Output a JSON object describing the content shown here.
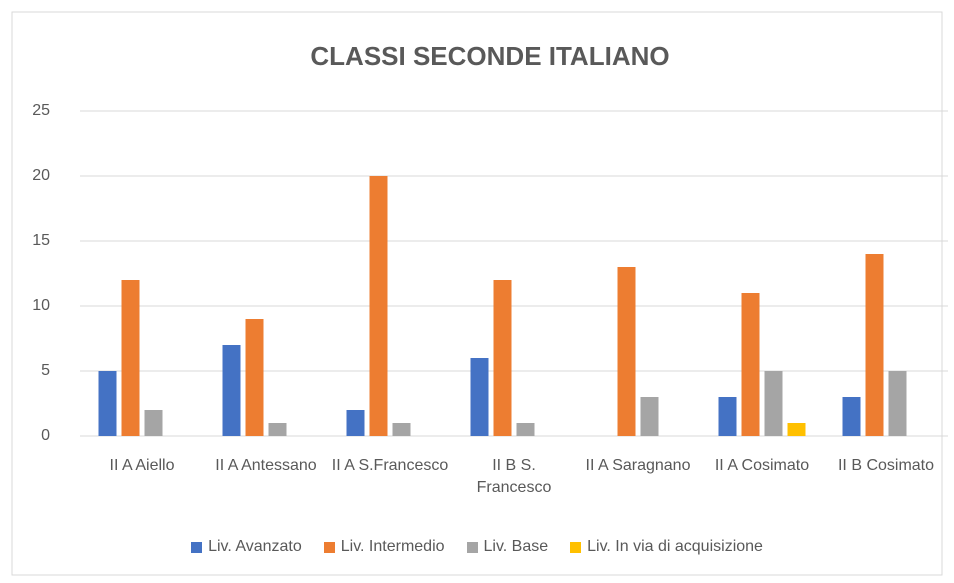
{
  "chart_data": {
    "type": "bar",
    "title": "CLASSI SECONDE ITALIANO",
    "categories": [
      "II A Aiello",
      "II A Antessano",
      "II A S.Francesco",
      "II B S. Francesco",
      "II A Saragnano",
      "II A Cosimato",
      "II B Cosimato"
    ],
    "series": [
      {
        "name": "Liv. Avanzato",
        "color": "#4472c4",
        "values": [
          5,
          7,
          2,
          6,
          0,
          3,
          3
        ]
      },
      {
        "name": "Liv. Intermedio",
        "color": "#ed7d31",
        "values": [
          12,
          9,
          20,
          12,
          13,
          11,
          14
        ]
      },
      {
        "name": "Liv. Base",
        "color": "#a5a5a5",
        "values": [
          2,
          1,
          1,
          1,
          3,
          5,
          5
        ]
      },
      {
        "name": "Liv. In via di acquisizione",
        "color": "#ffc000",
        "values": [
          0,
          0,
          0,
          0,
          0,
          1,
          0
        ]
      }
    ],
    "ylim": [
      0,
      25
    ],
    "yticks": [
      0,
      5,
      10,
      15,
      20,
      25
    ],
    "grid": true,
    "legend": "bottom"
  }
}
